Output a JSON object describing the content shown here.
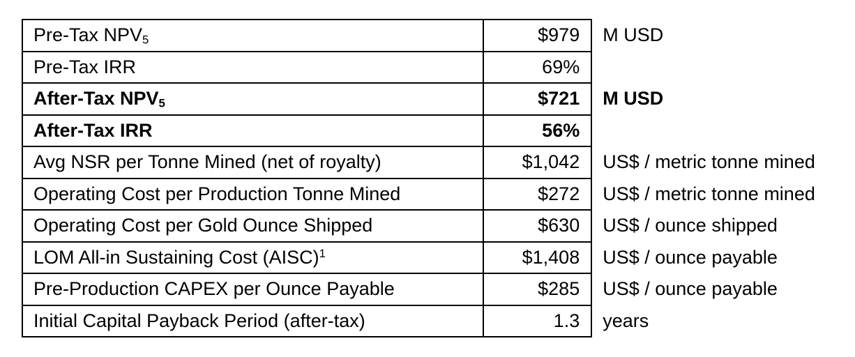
{
  "rows": [
    {
      "label": "Pre-Tax NPV",
      "sub": "5",
      "sup": "",
      "value": "$979",
      "unit": "M USD",
      "bold": false
    },
    {
      "label": "Pre-Tax IRR",
      "sub": "",
      "sup": "",
      "value": "69%",
      "unit": "",
      "bold": false
    },
    {
      "label": "After-Tax NPV",
      "sub": "5",
      "sup": "",
      "value": "$721",
      "unit": "M USD",
      "bold": true
    },
    {
      "label": "After-Tax IRR",
      "sub": "",
      "sup": "",
      "value": "56%",
      "unit": "",
      "bold": true
    },
    {
      "label": "Avg NSR per Tonne Mined (net of royalty)",
      "sub": "",
      "sup": "",
      "value": "$1,042",
      "unit": "US$ / metric tonne mined",
      "bold": false
    },
    {
      "label": "Operating Cost per Production Tonne Mined",
      "sub": "",
      "sup": "",
      "value": "$272",
      "unit": "US$ / metric tonne mined",
      "bold": false
    },
    {
      "label": "Operating Cost per Gold Ounce Shipped",
      "sub": "",
      "sup": "",
      "value": "$630",
      "unit": "US$ / ounce shipped",
      "bold": false
    },
    {
      "label": "LOM All-in Sustaining Cost (AISC)",
      "sub": "",
      "sup": "1",
      "value": "$1,408",
      "unit": "US$ / ounce payable",
      "bold": false
    },
    {
      "label": "Pre-Production CAPEX per Ounce Payable",
      "sub": "",
      "sup": "",
      "value": "$285",
      "unit": "US$ / ounce payable",
      "bold": false
    },
    {
      "label": "Initial Capital Payback Period (after-tax)",
      "sub": "",
      "sup": "",
      "value": "1.3",
      "unit": "years",
      "bold": false
    }
  ]
}
